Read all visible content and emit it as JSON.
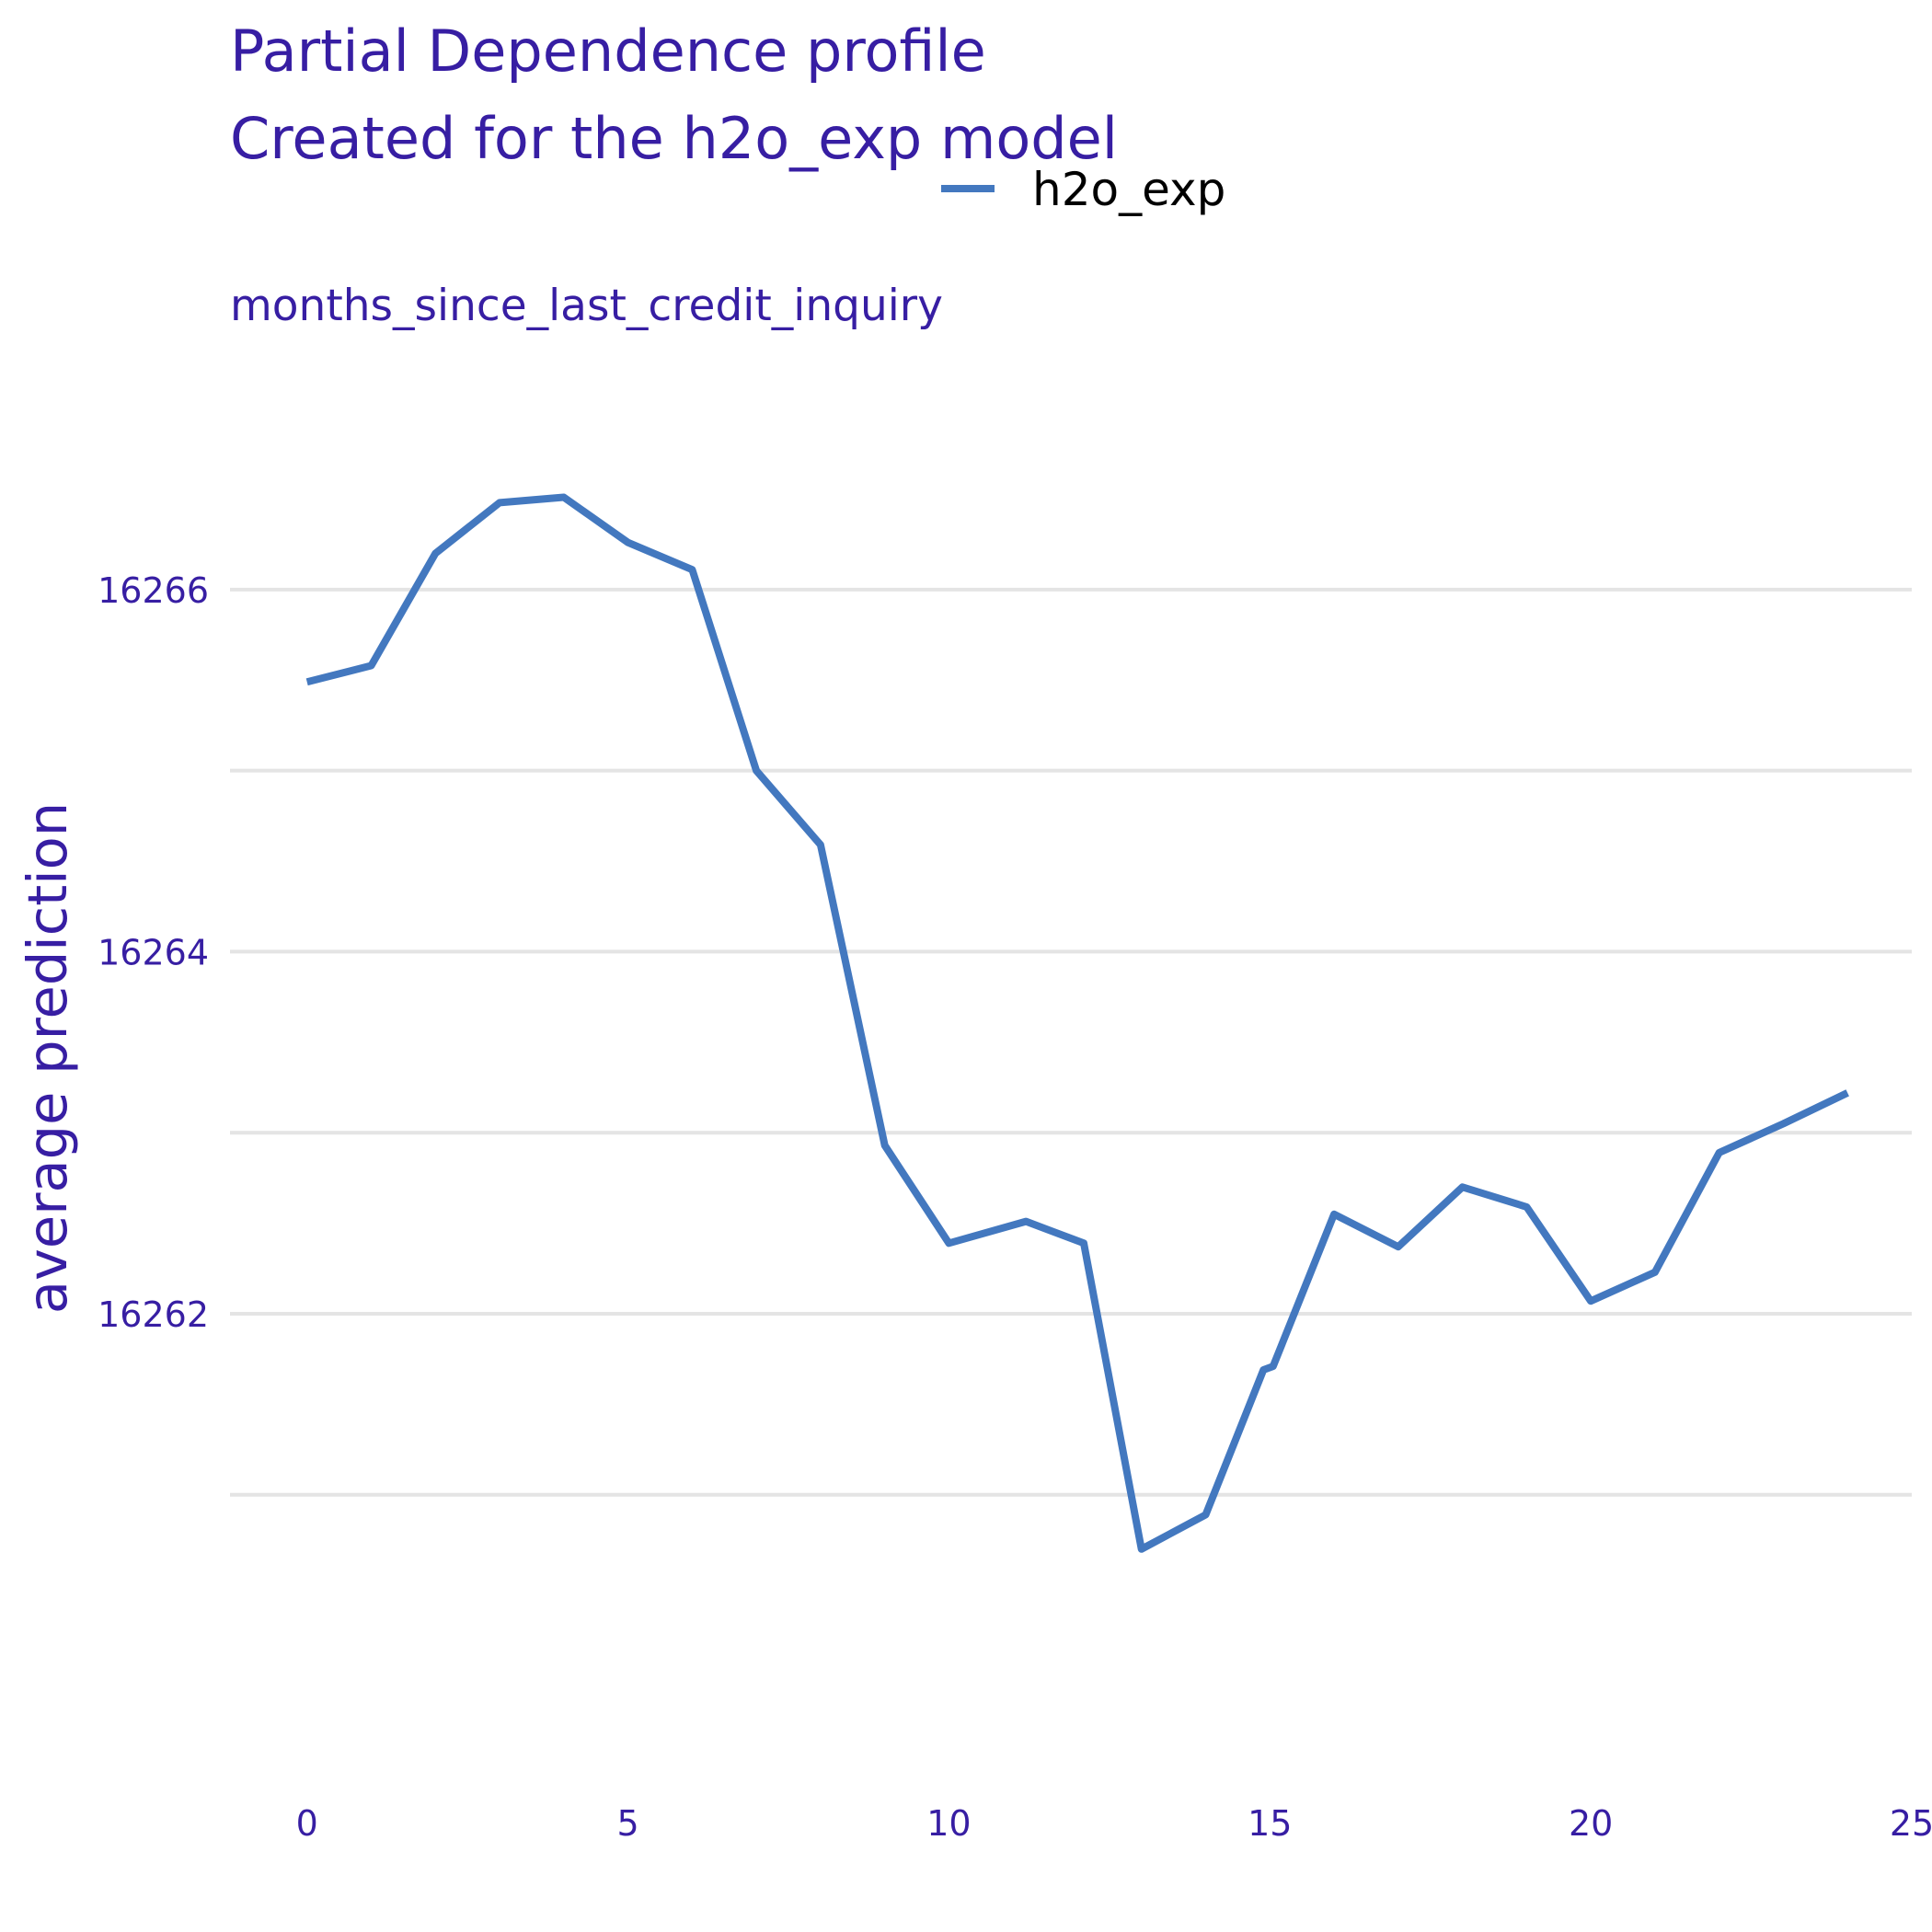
{
  "chart_data": {
    "type": "line",
    "title": "Partial Dependence profile",
    "subtitle": "Created for the h2o_exp model",
    "panel_label": "months_since_last_credit_inquiry",
    "xlabel": "",
    "ylabel": "average prediction",
    "xlim": [
      -1.2,
      25
    ],
    "ylim": [
      16259.5,
      16267.3
    ],
    "x_ticks": [
      0,
      5,
      10,
      15,
      20,
      25
    ],
    "y_ticks": [
      16262,
      16264,
      16266
    ],
    "y_gridlines": [
      16261,
      16262,
      16263,
      16264,
      16265,
      16266
    ],
    "grid": true,
    "legend_position": "top",
    "series": [
      {
        "name": "h2o_exp",
        "color": "#4378bf",
        "x": [
          0,
          1,
          2,
          3,
          4,
          5,
          6,
          7,
          8,
          9,
          10,
          11.2,
          12.1,
          13,
          14,
          14.9,
          15.05,
          16,
          17,
          18,
          19,
          20,
          21,
          22,
          23,
          24
        ],
        "y": [
          16265.49,
          16265.58,
          16266.2,
          16266.48,
          16266.51,
          16266.26,
          16266.11,
          16265.0,
          16264.59,
          16262.93,
          16262.39,
          16262.51,
          16262.39,
          16260.7,
          16260.89,
          16261.69,
          16261.71,
          16262.55,
          16262.37,
          16262.7,
          16262.59,
          16262.07,
          16262.23,
          16262.89,
          16263.05,
          16263.22
        ]
      }
    ]
  }
}
